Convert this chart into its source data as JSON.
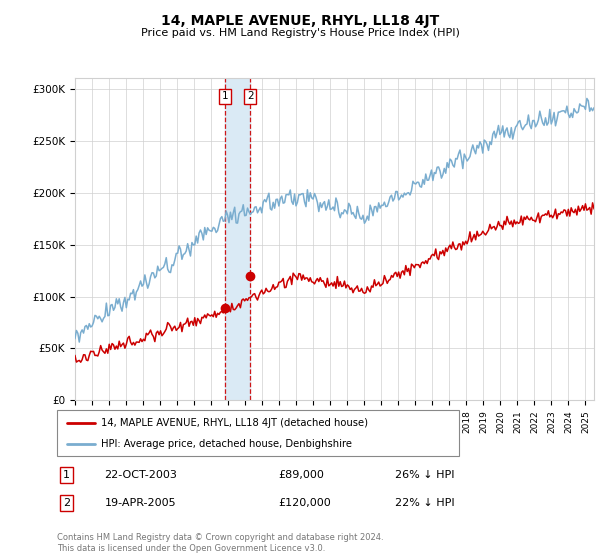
{
  "title": "14, MAPLE AVENUE, RHYL, LL18 4JT",
  "subtitle": "Price paid vs. HM Land Registry's House Price Index (HPI)",
  "red_label": "14, MAPLE AVENUE, RHYL, LL18 4JT (detached house)",
  "blue_label": "HPI: Average price, detached house, Denbighshire",
  "transaction1_date": "22-OCT-2003",
  "transaction1_price": 89000,
  "transaction1_pct": "26% ↓ HPI",
  "transaction2_date": "19-APR-2005",
  "transaction2_price": 120000,
  "transaction2_pct": "22% ↓ HPI",
  "footer": "Contains HM Land Registry data © Crown copyright and database right 2024.\nThis data is licensed under the Open Government Licence v3.0.",
  "ylim": [
    0,
    310000
  ],
  "red_color": "#cc0000",
  "blue_color": "#7aadcf",
  "shade_color": "#daeaf5",
  "vline_color": "#cc0000",
  "marker1_x": 2003.8,
  "marker1_y": 89000,
  "marker2_x": 2005.3,
  "marker2_y": 120000,
  "xmin": 1995,
  "xmax": 2025.5,
  "yticks": [
    0,
    50000,
    100000,
    150000,
    200000,
    250000,
    300000
  ],
  "ytick_labels": [
    "£0",
    "£50K",
    "£100K",
    "£150K",
    "£200K",
    "£250K",
    "£300K"
  ]
}
